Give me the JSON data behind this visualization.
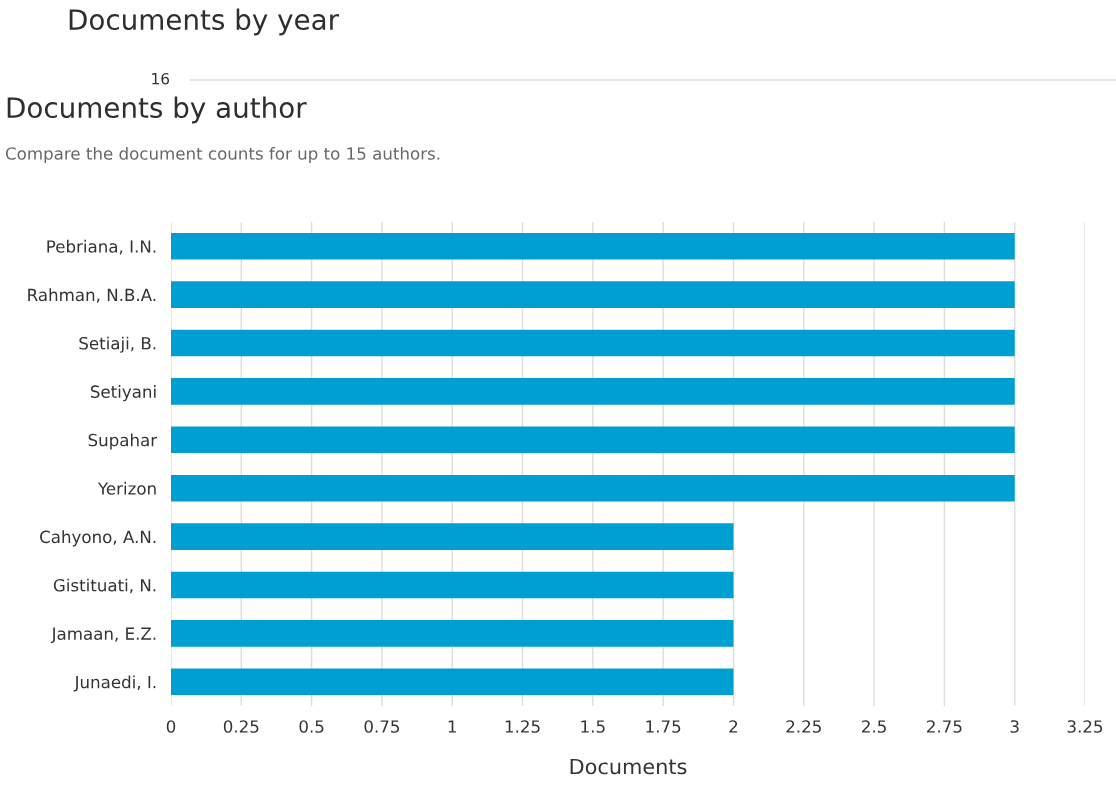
{
  "chart_data": {
    "type": "bar",
    "orientation": "horizontal",
    "title": "Documents by author",
    "subtitle": "Compare the document counts for up to 15 authors.",
    "xlabel": "Documents",
    "annotations": [
      "Documents by year",
      "16"
    ],
    "categories": [
      "Pebriana, I.N.",
      "Rahman, N.B.A.",
      "Setiaji, B.",
      "Setiyani",
      "Supahar",
      "Yerizon",
      "Cahyono, A.N.",
      "Gistituati, N.",
      "Jamaan, E.Z.",
      "Junaedi, I."
    ],
    "values": [
      3,
      3,
      3,
      3,
      3,
      3,
      2,
      2,
      2,
      2
    ],
    "color": "#009fd1",
    "xlim": [
      0,
      3.25
    ],
    "xticks": [
      0,
      0.25,
      0.5,
      0.75,
      1,
      1.25,
      1.5,
      1.75,
      2,
      2.25,
      2.5,
      2.75,
      3,
      3.25
    ],
    "grid": "x"
  }
}
